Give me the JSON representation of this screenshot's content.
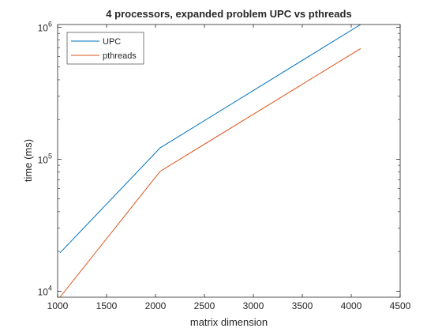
{
  "chart_data": {
    "type": "line",
    "title": "4 processors, expanded problem UPC vs pthreads",
    "xlabel": "matrix dimension",
    "ylabel": "time (ms)",
    "xlim": [
      1000,
      4500
    ],
    "ylim": [
      9000,
      1050000
    ],
    "yscale": "log",
    "grid": false,
    "legend_position": "top-left",
    "x_ticks": [
      1000,
      1500,
      2000,
      2500,
      3000,
      3500,
      4000,
      4500
    ],
    "y_ticks": [
      {
        "value": 10000,
        "base": "10",
        "exp": "4"
      },
      {
        "value": 100000,
        "base": "10",
        "exp": "5"
      },
      {
        "value": 1000000,
        "base": "10",
        "exp": "6"
      }
    ],
    "series": [
      {
        "name": "UPC",
        "color": "#0072BD",
        "x": [
          1024,
          2048,
          4096
        ],
        "y": [
          19500,
          122000,
          1050000
        ]
      },
      {
        "name": "pthreads",
        "color": "#D95319",
        "x": [
          1024,
          2048,
          4096
        ],
        "y": [
          9000,
          81000,
          690000
        ]
      }
    ]
  }
}
